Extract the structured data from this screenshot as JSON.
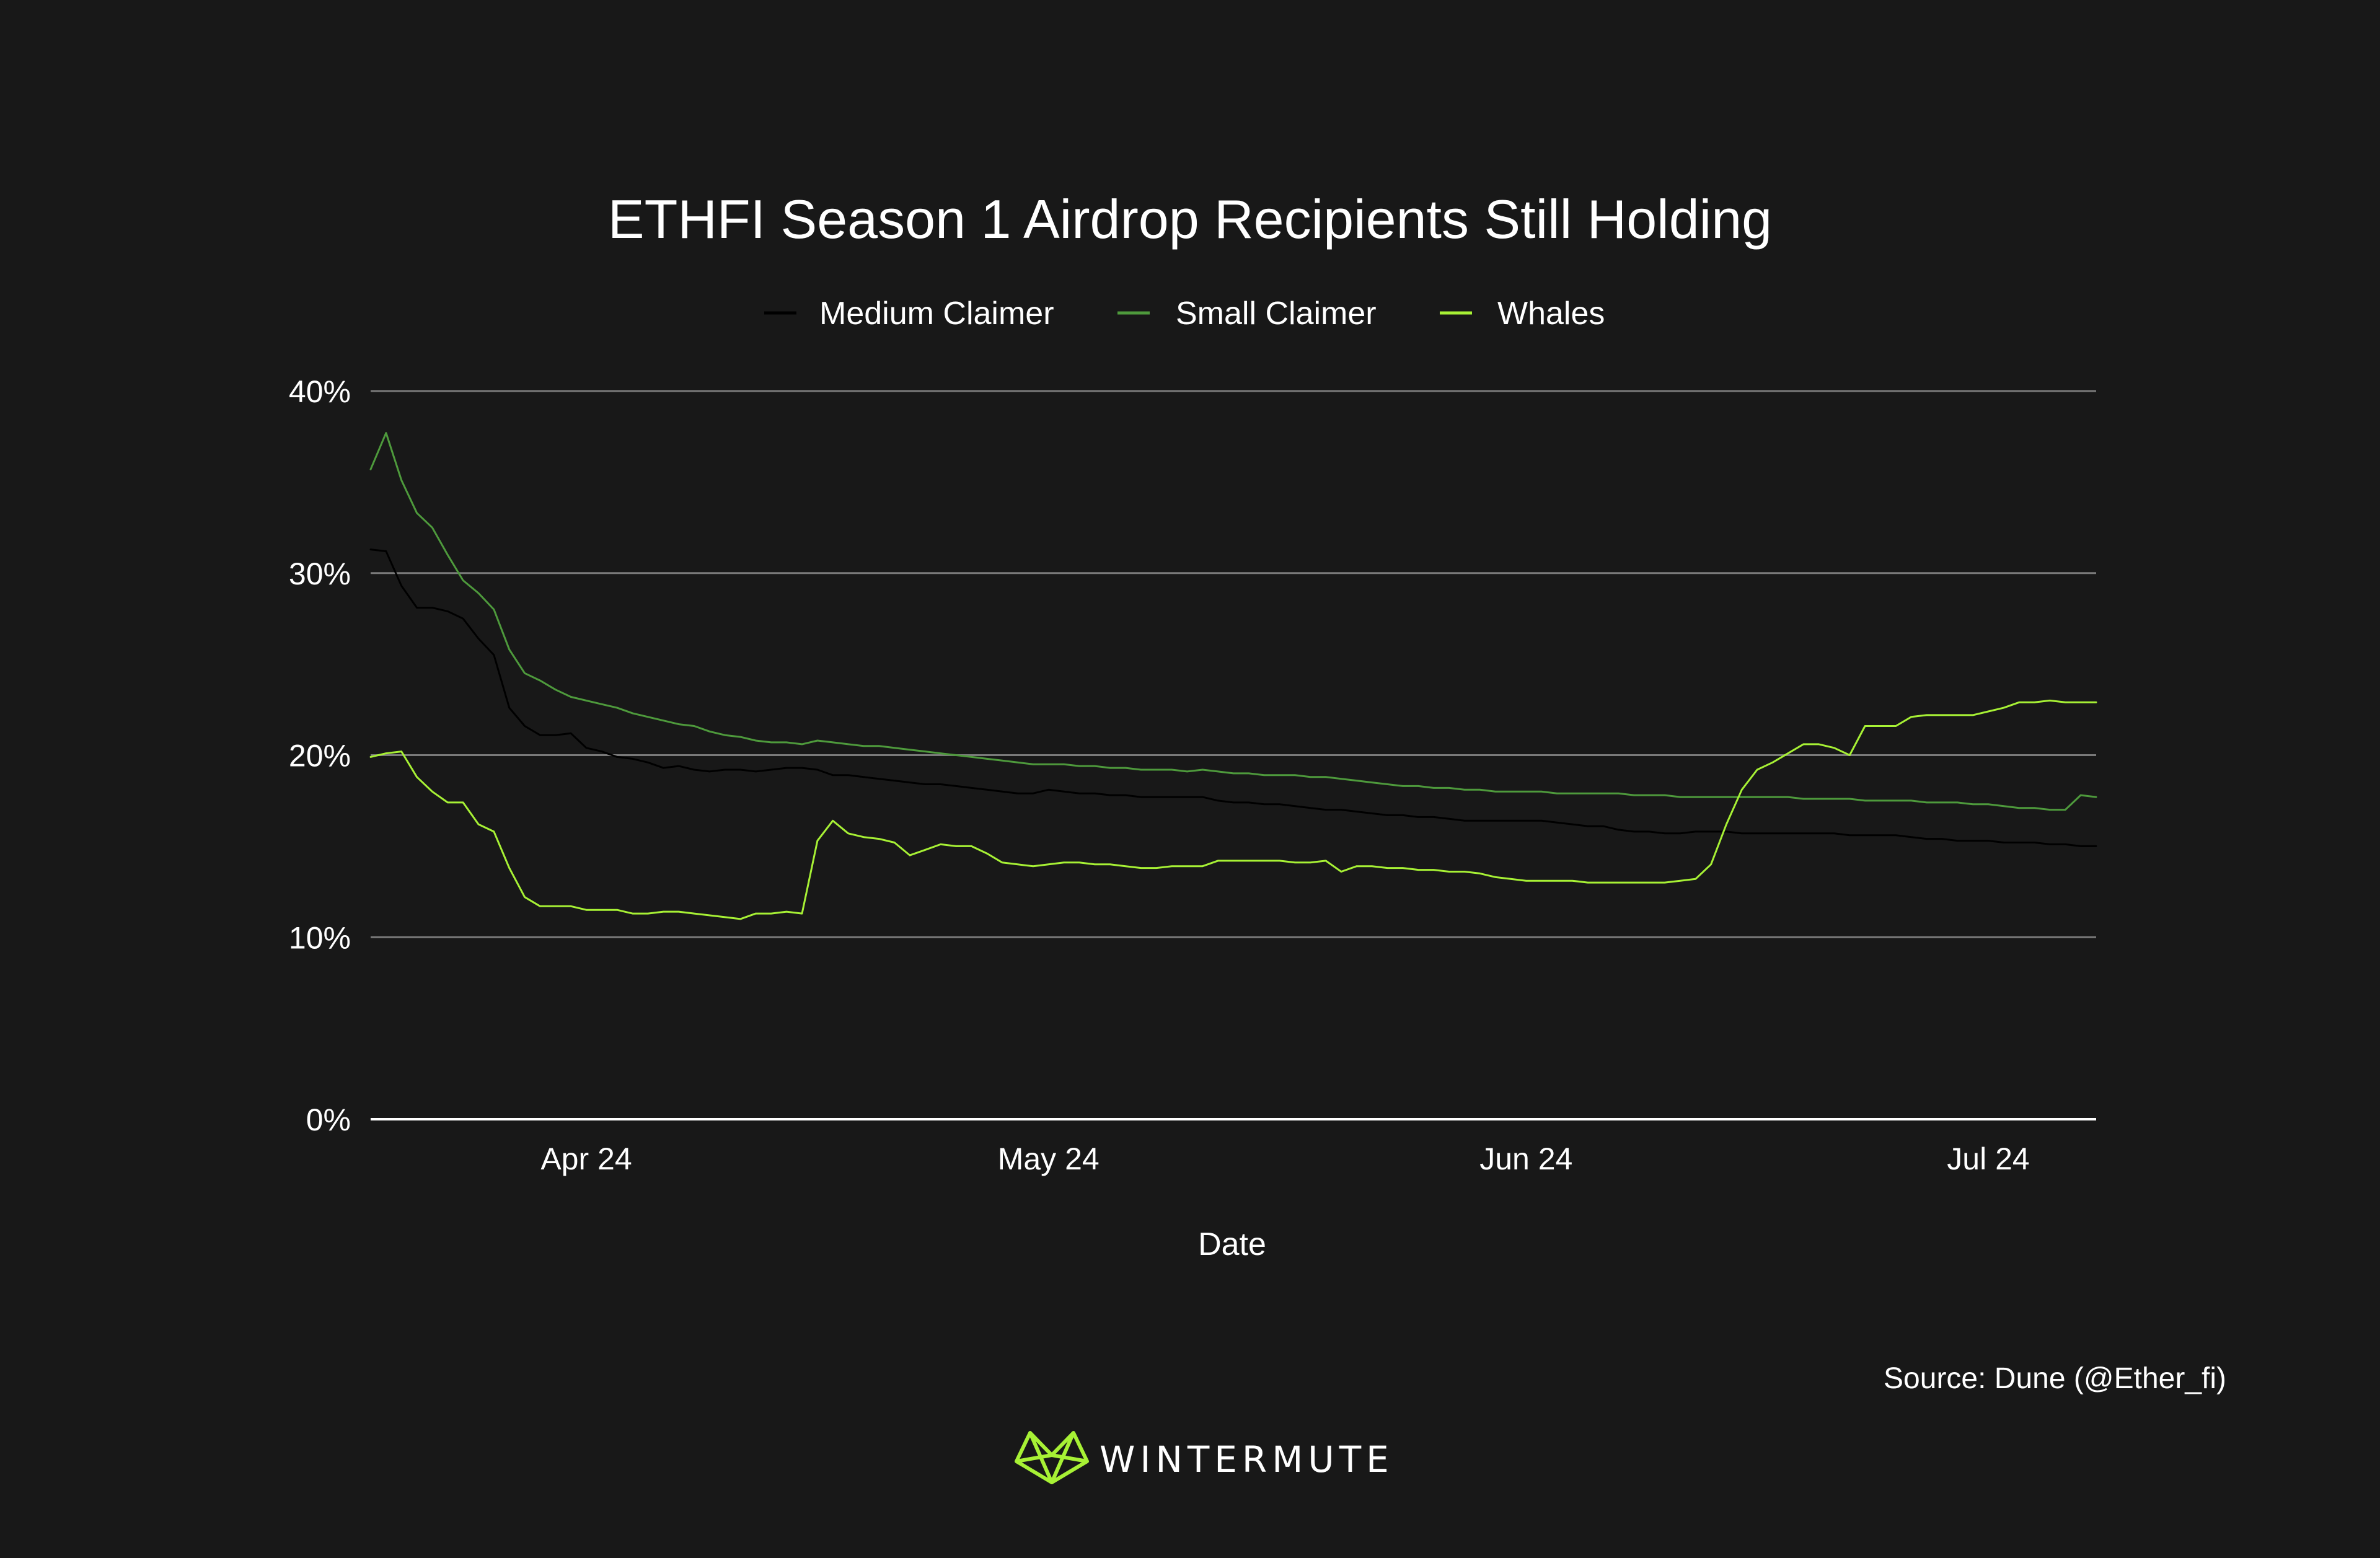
{
  "chart_data": {
    "type": "line",
    "title": "ETHFI Season 1 Airdrop Recipients Still Holding",
    "xlabel": "Date",
    "ylabel": "",
    "ylim": [
      0,
      40
    ],
    "yticks": [
      {
        "value": 0,
        "label": "0%"
      },
      {
        "value": 10,
        "label": "10%"
      },
      {
        "value": 20,
        "label": "20%"
      },
      {
        "value": 30,
        "label": "30%"
      },
      {
        "value": 40,
        "label": "40%"
      }
    ],
    "xticks": [
      {
        "day": 14,
        "label": "Apr 24"
      },
      {
        "day": 44,
        "label": "May 24"
      },
      {
        "day": 75,
        "label": "Jun 24"
      },
      {
        "day": 105,
        "label": "Jul 24"
      }
    ],
    "x_range_days": [
      0,
      112
    ],
    "x_note": "days since 2024-03-18",
    "grid": true,
    "legend_position": "top-center",
    "source": "Source: Dune (@Ether_fi)",
    "brand": "WINTERMUTE",
    "series": [
      {
        "name": "Medium Claimer",
        "color": "#000000",
        "x": [
          0,
          1,
          2,
          3,
          4,
          5,
          6,
          7,
          8,
          9,
          10,
          11,
          12,
          13,
          14,
          15,
          16,
          17,
          18,
          19,
          20,
          21,
          22,
          23,
          24,
          25,
          26,
          27,
          28,
          29,
          30,
          31,
          32,
          33,
          34,
          35,
          36,
          37,
          38,
          39,
          40,
          41,
          42,
          43,
          44,
          45,
          46,
          47,
          48,
          49,
          50,
          51,
          52,
          53,
          54,
          55,
          56,
          57,
          58,
          59,
          60,
          61,
          62,
          63,
          64,
          65,
          66,
          67,
          68,
          69,
          70,
          71,
          72,
          73,
          74,
          75,
          76,
          77,
          78,
          79,
          80,
          81,
          82,
          83,
          84,
          85,
          86,
          87,
          88,
          89,
          90,
          91,
          92,
          93,
          94,
          95,
          96,
          97,
          98,
          99,
          100,
          101,
          102,
          103,
          104,
          105,
          106,
          107,
          108,
          109,
          110,
          111,
          112
        ],
        "values": [
          31.3,
          31.2,
          29.3,
          28.1,
          28.1,
          27.9,
          27.5,
          26.4,
          25.5,
          22.6,
          21.6,
          21.1,
          21.1,
          21.2,
          20.4,
          20.2,
          19.9,
          19.8,
          19.6,
          19.3,
          19.4,
          19.2,
          19.1,
          19.2,
          19.2,
          19.1,
          19.2,
          19.3,
          19.3,
          19.2,
          18.9,
          18.9,
          18.8,
          18.7,
          18.6,
          18.5,
          18.4,
          18.4,
          18.3,
          18.2,
          18.1,
          18.0,
          17.9,
          17.9,
          18.1,
          18.0,
          17.9,
          17.9,
          17.8,
          17.8,
          17.7,
          17.7,
          17.7,
          17.7,
          17.7,
          17.5,
          17.4,
          17.4,
          17.3,
          17.3,
          17.2,
          17.1,
          17.0,
          17.0,
          16.9,
          16.8,
          16.7,
          16.7,
          16.6,
          16.6,
          16.5,
          16.4,
          16.4,
          16.4,
          16.4,
          16.4,
          16.4,
          16.3,
          16.2,
          16.1,
          16.1,
          15.9,
          15.8,
          15.8,
          15.7,
          15.7,
          15.8,
          15.8,
          15.8,
          15.7,
          15.7,
          15.7,
          15.7,
          15.7,
          15.7,
          15.7,
          15.6,
          15.6,
          15.6,
          15.6,
          15.5,
          15.4,
          15.4,
          15.3,
          15.3,
          15.3,
          15.2,
          15.2,
          15.2,
          15.1,
          15.1,
          15.0,
          15.0
        ]
      },
      {
        "name": "Small Claimer",
        "color": "#4e9a3c",
        "x": [
          0,
          1,
          2,
          3,
          4,
          5,
          6,
          7,
          8,
          9,
          10,
          11,
          12,
          13,
          14,
          15,
          16,
          17,
          18,
          19,
          20,
          21,
          22,
          23,
          24,
          25,
          26,
          27,
          28,
          29,
          30,
          31,
          32,
          33,
          34,
          35,
          36,
          37,
          38,
          39,
          40,
          41,
          42,
          43,
          44,
          45,
          46,
          47,
          48,
          49,
          50,
          51,
          52,
          53,
          54,
          55,
          56,
          57,
          58,
          59,
          60,
          61,
          62,
          63,
          64,
          65,
          66,
          67,
          68,
          69,
          70,
          71,
          72,
          73,
          74,
          75,
          76,
          77,
          78,
          79,
          80,
          81,
          82,
          83,
          84,
          85,
          86,
          87,
          88,
          89,
          90,
          91,
          92,
          93,
          94,
          95,
          96,
          97,
          98,
          99,
          100,
          101,
          102,
          103,
          104,
          105,
          106,
          107,
          108,
          109,
          110,
          111,
          112
        ],
        "values": [
          35.7,
          37.7,
          35.1,
          33.3,
          32.5,
          31.0,
          29.6,
          28.9,
          28.0,
          25.8,
          24.5,
          24.1,
          23.6,
          23.2,
          23.0,
          22.8,
          22.6,
          22.3,
          22.1,
          21.9,
          21.7,
          21.6,
          21.3,
          21.1,
          21.0,
          20.8,
          20.7,
          20.7,
          20.6,
          20.8,
          20.7,
          20.6,
          20.5,
          20.5,
          20.4,
          20.3,
          20.2,
          20.1,
          20.0,
          19.9,
          19.8,
          19.7,
          19.6,
          19.5,
          19.5,
          19.5,
          19.4,
          19.4,
          19.3,
          19.3,
          19.2,
          19.2,
          19.2,
          19.1,
          19.2,
          19.1,
          19.0,
          19.0,
          18.9,
          18.9,
          18.9,
          18.8,
          18.8,
          18.7,
          18.6,
          18.5,
          18.4,
          18.3,
          18.3,
          18.2,
          18.2,
          18.1,
          18.1,
          18.0,
          18.0,
          18.0,
          18.0,
          17.9,
          17.9,
          17.9,
          17.9,
          17.9,
          17.8,
          17.8,
          17.8,
          17.7,
          17.7,
          17.7,
          17.7,
          17.7,
          17.7,
          17.7,
          17.7,
          17.6,
          17.6,
          17.6,
          17.6,
          17.5,
          17.5,
          17.5,
          17.5,
          17.4,
          17.4,
          17.4,
          17.3,
          17.3,
          17.2,
          17.1,
          17.1,
          17.0,
          17.0,
          17.8,
          17.7
        ]
      },
      {
        "name": "Whales",
        "color": "#a7f135",
        "x": [
          0,
          1,
          2,
          3,
          4,
          5,
          6,
          7,
          8,
          9,
          10,
          11,
          12,
          13,
          14,
          15,
          16,
          17,
          18,
          19,
          20,
          21,
          22,
          23,
          24,
          25,
          26,
          27,
          28,
          29,
          30,
          31,
          32,
          33,
          34,
          35,
          36,
          37,
          38,
          39,
          40,
          41,
          42,
          43,
          44,
          45,
          46,
          47,
          48,
          49,
          50,
          51,
          52,
          53,
          54,
          55,
          56,
          57,
          58,
          59,
          60,
          61,
          62,
          63,
          64,
          65,
          66,
          67,
          68,
          69,
          70,
          71,
          72,
          73,
          74,
          75,
          76,
          77,
          78,
          79,
          80,
          81,
          82,
          83,
          84,
          85,
          86,
          87,
          88,
          89,
          90,
          91,
          92,
          93,
          94,
          95,
          96,
          97,
          98,
          99,
          100,
          101,
          102,
          103,
          104,
          105,
          106,
          107,
          108,
          109,
          110,
          111,
          112
        ],
        "values": [
          19.9,
          20.1,
          20.2,
          18.8,
          18.0,
          17.4,
          17.4,
          16.2,
          15.8,
          13.8,
          12.2,
          11.7,
          11.7,
          11.7,
          11.5,
          11.5,
          11.5,
          11.3,
          11.3,
          11.4,
          11.4,
          11.3,
          11.2,
          11.1,
          11.0,
          11.3,
          11.3,
          11.4,
          11.3,
          15.3,
          16.4,
          15.7,
          15.5,
          15.4,
          15.2,
          14.5,
          14.8,
          15.1,
          15.0,
          15.0,
          14.6,
          14.1,
          14.0,
          13.9,
          14.0,
          14.1,
          14.1,
          14.0,
          14.0,
          13.9,
          13.8,
          13.8,
          13.9,
          13.9,
          13.9,
          14.2,
          14.2,
          14.2,
          14.2,
          14.2,
          14.1,
          14.1,
          14.2,
          13.6,
          13.9,
          13.9,
          13.8,
          13.8,
          13.7,
          13.7,
          13.6,
          13.6,
          13.5,
          13.3,
          13.2,
          13.1,
          13.1,
          13.1,
          13.1,
          13.0,
          13.0,
          13.0,
          13.0,
          13.0,
          13.0,
          13.1,
          13.2,
          14.0,
          16.2,
          18.1,
          19.2,
          19.6,
          20.1,
          20.6,
          20.6,
          20.4,
          20.0,
          21.6,
          21.6,
          21.6,
          22.1,
          22.2,
          22.2,
          22.2,
          22.2,
          22.4,
          22.6,
          22.9,
          22.9,
          23.0,
          22.9,
          22.9,
          22.9
        ]
      }
    ]
  }
}
